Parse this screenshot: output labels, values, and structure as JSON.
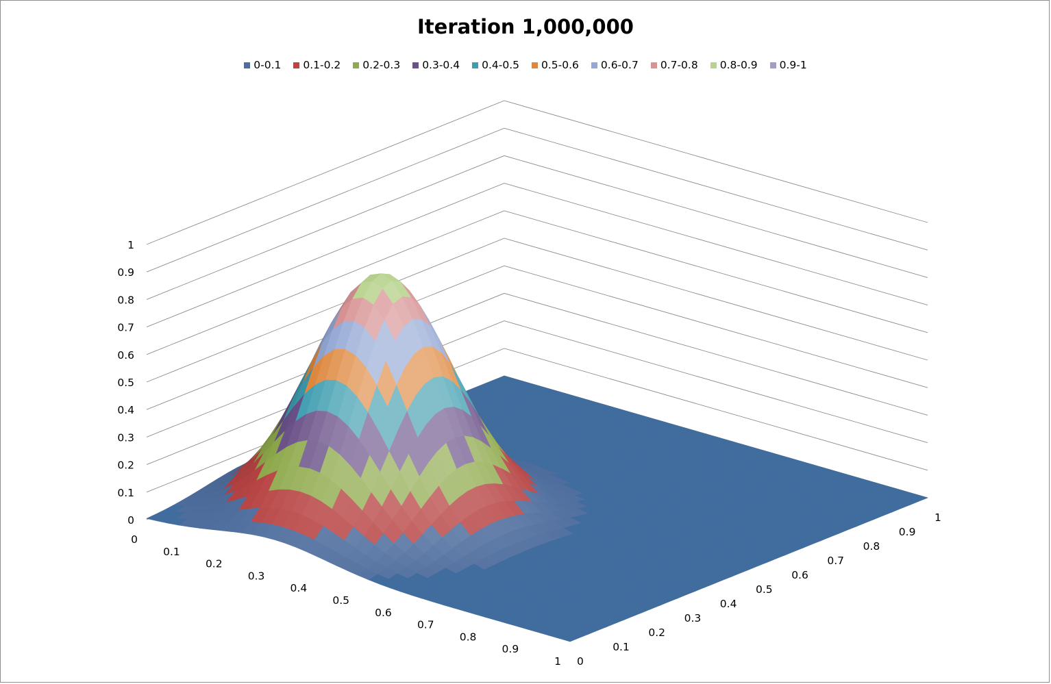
{
  "chart_data": {
    "type": "surface",
    "title": "Iteration 1,000,000",
    "legend_position": "top",
    "legend": [
      {
        "label": "0-0.1",
        "color": "#4F6E9E"
      },
      {
        "label": "0.1-0.2",
        "color": "#B84444"
      },
      {
        "label": "0.2-0.3",
        "color": "#8FAA4C"
      },
      {
        "label": "0.3-0.4",
        "color": "#6A5189"
      },
      {
        "label": "0.4-0.5",
        "color": "#3E9DAF"
      },
      {
        "label": "0.5-0.6",
        "color": "#DE883E"
      },
      {
        "label": "0.6-0.7",
        "color": "#94A8D4"
      },
      {
        "label": "0.7-0.8",
        "color": "#D89495"
      },
      {
        "label": "0.8-0.9",
        "color": "#B9D38F"
      },
      {
        "label": "0.9-1",
        "color": "#A69BC4"
      }
    ],
    "z_ticks": [
      "0",
      "0.1",
      "0.2",
      "0.3",
      "0.4",
      "0.5",
      "0.6",
      "0.7",
      "0.8",
      "0.9",
      "1"
    ],
    "x_ticks": [
      "0",
      "0.1",
      "0.2",
      "0.3",
      "0.4",
      "0.5",
      "0.6",
      "0.7",
      "0.8",
      "0.9",
      "1"
    ],
    "y_ticks": [
      "0",
      "0.1",
      "0.2",
      "0.3",
      "0.4",
      "0.5",
      "0.6",
      "0.7",
      "0.8",
      "0.9",
      "1"
    ],
    "zlim": [
      0,
      1
    ],
    "xlim": [
      0,
      1
    ],
    "ylim": [
      0,
      1
    ],
    "grid": true,
    "peak": {
      "x": 0.3,
      "y": 0.3,
      "z": 0.87,
      "spread": 0.13
    }
  }
}
